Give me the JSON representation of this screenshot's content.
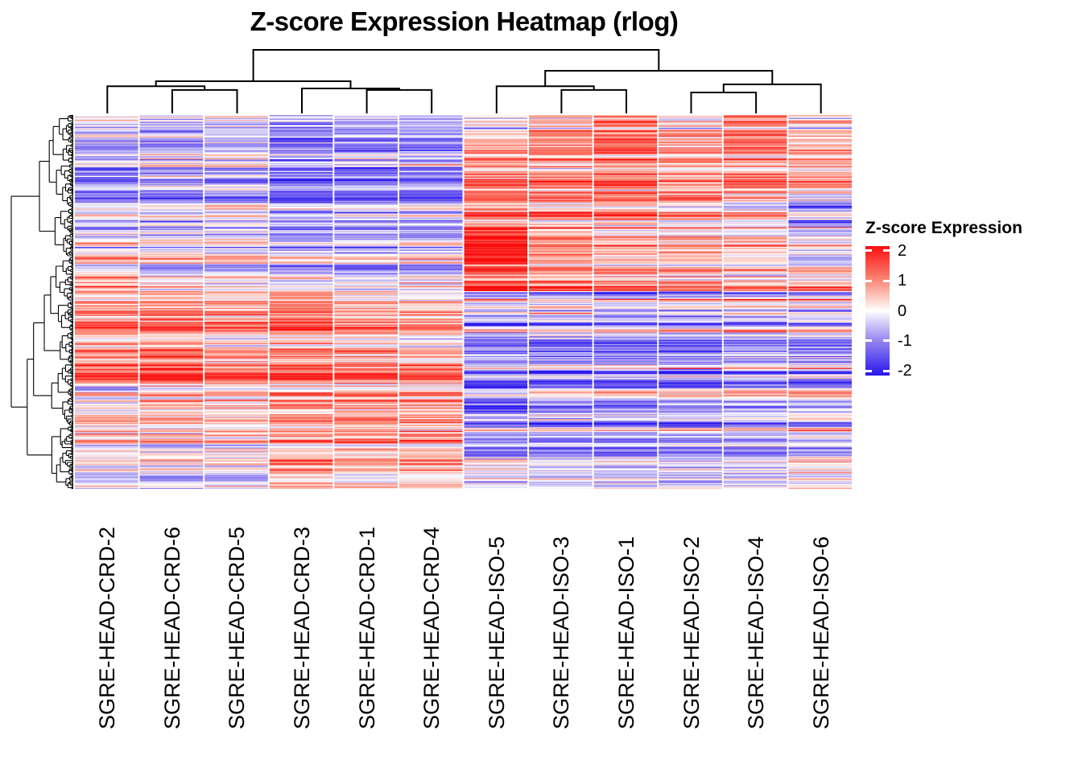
{
  "title": "Z-score Expression Heatmap (rlog)",
  "legend": {
    "title": "Z-score Expression",
    "ticks": [
      {
        "label": "2",
        "value": 2
      },
      {
        "label": "1",
        "value": 1
      },
      {
        "label": "0",
        "value": 0
      },
      {
        "label": "-1",
        "value": -1
      },
      {
        "label": "-2",
        "value": -2
      }
    ],
    "range": [
      -2.15,
      2.15
    ]
  },
  "chart_data": {
    "type": "heatmap",
    "title": "Z-score Expression Heatmap (rlog)",
    "value_label": "Z-score Expression",
    "columns": [
      "SGRE-HEAD-CRD-2",
      "SGRE-HEAD-CRD-6",
      "SGRE-HEAD-CRD-5",
      "SGRE-HEAD-CRD-3",
      "SGRE-HEAD-CRD-1",
      "SGRE-HEAD-CRD-4",
      "SGRE-HEAD-ISO-5",
      "SGRE-HEAD-ISO-3",
      "SGRE-HEAD-ISO-1",
      "SGRE-HEAD-ISO-2",
      "SGRE-HEAD-ISO-4",
      "SGRE-HEAD-ISO-6"
    ],
    "column_groups": [
      "CRD",
      "CRD",
      "CRD",
      "CRD",
      "CRD",
      "CRD",
      "ISO",
      "ISO",
      "ISO",
      "ISO",
      "ISO",
      "ISO"
    ],
    "colormap": [
      {
        "v": -2.2,
        "c": "#2412EE"
      },
      {
        "v": -1.0,
        "c": "#9484F0"
      },
      {
        "v": 0.0,
        "c": "#FFFFFF"
      },
      {
        "v": 1.0,
        "c": "#FB8A77"
      },
      {
        "v": 2.2,
        "c": "#FA0A0A"
      }
    ],
    "col_dendrogram": [
      [
        [
          0,
          [
            1,
            2,
            0.36
          ],
          0.42
        ],
        [
          3,
          [
            4,
            5,
            0.36
          ],
          0.385
        ],
        0.5
      ],
      [
        [
          6,
          [
            7,
            8,
            0.36
          ],
          0.42
        ],
        [
          [
            9,
            10,
            0.32
          ],
          11,
          0.45
        ],
        0.667
      ],
      1.0
    ],
    "row_dendrogram": {
      "n_leaves": 380,
      "seed": 99
    },
    "row_blocks": [
      {
        "from": 0.0,
        "to": 0.03,
        "means": [
          0.1,
          -0.4,
          -0.2,
          -0.7,
          -0.5,
          -0.6,
          0.4,
          0.6,
          1.3,
          0.5,
          1.3,
          0.5
        ]
      },
      {
        "from": 0.03,
        "to": 0.1,
        "means": [
          -0.6,
          -0.8,
          -0.5,
          -1.0,
          -0.8,
          -0.9,
          0.6,
          1.0,
          1.4,
          0.8,
          1.2,
          0.6
        ]
      },
      {
        "from": 0.1,
        "to": 0.21,
        "means": [
          -1.1,
          -0.7,
          -0.6,
          -1.2,
          -1.1,
          -1.0,
          0.9,
          0.9,
          1.1,
          0.7,
          0.9,
          0.7
        ]
      },
      {
        "from": 0.21,
        "to": 0.3,
        "means": [
          -0.6,
          -0.6,
          -0.5,
          -1.0,
          -0.9,
          -0.9,
          1.1,
          0.9,
          0.9,
          0.6,
          0.3,
          -0.5
        ]
      },
      {
        "from": 0.3,
        "to": 0.4,
        "means": [
          -0.4,
          -0.5,
          -0.4,
          -0.9,
          -0.9,
          -0.8,
          2.1,
          1.1,
          0.8,
          0.7,
          0.5,
          -0.1
        ]
      },
      {
        "from": 0.4,
        "to": 0.47,
        "means": [
          0.3,
          -0.3,
          -0.2,
          -0.5,
          -0.6,
          -0.5,
          1.2,
          0.8,
          0.5,
          0.4,
          0.3,
          0.3
        ]
      },
      {
        "from": 0.47,
        "to": 0.58,
        "means": [
          0.8,
          0.9,
          0.6,
          1.0,
          0.5,
          0.4,
          -0.6,
          -0.6,
          -0.7,
          -0.6,
          -0.5,
          -0.4
        ]
      },
      {
        "from": 0.58,
        "to": 0.72,
        "means": [
          0.9,
          1.2,
          0.8,
          0.9,
          0.8,
          0.7,
          -0.8,
          -0.8,
          -0.8,
          -0.8,
          -0.6,
          -0.6
        ]
      },
      {
        "from": 0.72,
        "to": 0.8,
        "means": [
          0.2,
          0.7,
          0.4,
          0.8,
          0.9,
          0.7,
          -1.4,
          -0.8,
          -0.8,
          -0.7,
          -0.5,
          -0.5
        ]
      },
      {
        "from": 0.8,
        "to": 0.92,
        "means": [
          0.5,
          0.5,
          0.4,
          0.9,
          0.9,
          0.9,
          -0.7,
          -0.7,
          -0.7,
          -0.7,
          -0.6,
          -0.3
        ]
      },
      {
        "from": 0.92,
        "to": 1.0,
        "means": [
          0.4,
          0.3,
          0.3,
          1.2,
          0.8,
          1.0,
          -0.5,
          -0.6,
          -0.5,
          -0.6,
          -0.5,
          -0.2
        ]
      }
    ],
    "noise": {
      "row_corr": 0.55,
      "row_sd": 0.5,
      "cell_sd": 0.32,
      "bright_prob": 0.05,
      "bright_boost": 1.7,
      "seed": 1337
    },
    "n_rows": 380
  }
}
